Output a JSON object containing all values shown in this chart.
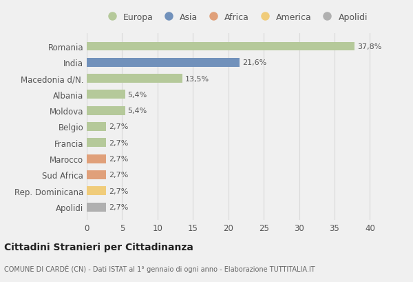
{
  "categories": [
    "Romania",
    "India",
    "Macedonia d/N.",
    "Albania",
    "Moldova",
    "Belgio",
    "Francia",
    "Marocco",
    "Sud Africa",
    "Rep. Dominicana",
    "Apolidi"
  ],
  "values": [
    37.8,
    21.6,
    13.5,
    5.4,
    5.4,
    2.7,
    2.7,
    2.7,
    2.7,
    2.7,
    2.7
  ],
  "labels": [
    "37,8%",
    "21,6%",
    "13,5%",
    "5,4%",
    "5,4%",
    "2,7%",
    "2,7%",
    "2,7%",
    "2,7%",
    "2,7%",
    "2,7%"
  ],
  "colors": [
    "#b5c99a",
    "#7191bb",
    "#b5c99a",
    "#b5c99a",
    "#b5c99a",
    "#b5c99a",
    "#b5c99a",
    "#e0a07a",
    "#e0a07a",
    "#f0cc7a",
    "#b0b0b0"
  ],
  "legend_labels": [
    "Europa",
    "Asia",
    "Africa",
    "America",
    "Apolidi"
  ],
  "legend_colors": [
    "#b5c99a",
    "#7191bb",
    "#e0a07a",
    "#f0cc7a",
    "#b0b0b0"
  ],
  "title": "Cittadini Stranieri per Cittadinanza",
  "subtitle": "COMUNE DI CARDÈ (CN) - Dati ISTAT al 1° gennaio di ogni anno - Elaborazione TUTTITALIA.IT",
  "xlim": [
    0,
    42
  ],
  "xticks": [
    0,
    5,
    10,
    15,
    20,
    25,
    30,
    35,
    40
  ],
  "bg_color": "#f0f0f0",
  "plot_bg_color": "#f0f0f0",
  "grid_color": "#d8d8d8",
  "bar_height": 0.55
}
